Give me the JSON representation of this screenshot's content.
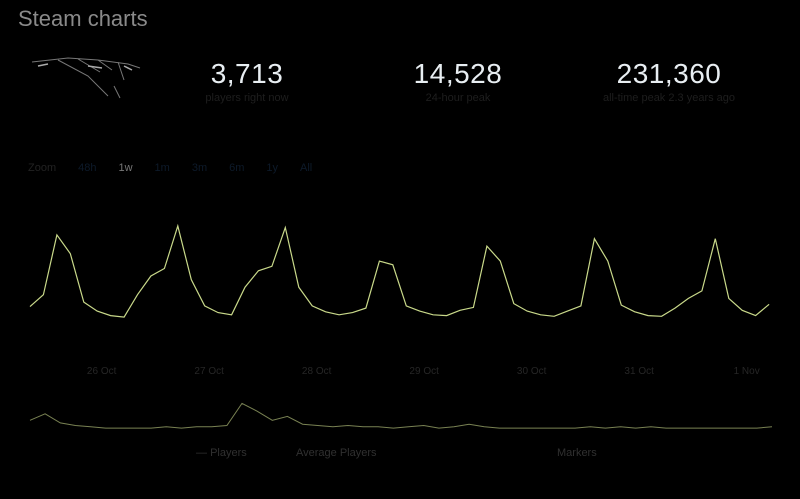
{
  "header": {
    "title": "Steam charts"
  },
  "stats": [
    {
      "value": "3,713",
      "label": "players right now"
    },
    {
      "value": "14,528",
      "label": "24-hour peak"
    },
    {
      "value": "231,360",
      "label": "all-time peak 2.3 years ago"
    }
  ],
  "zoom": {
    "label": "Zoom",
    "options": [
      "48h",
      "1w",
      "1m",
      "3m",
      "6m",
      "1y",
      "All"
    ],
    "selected": "1w"
  },
  "colors": {
    "line": "#c9d98a",
    "background": "#000000",
    "stat_value": "#e8eef2"
  },
  "chart_data": {
    "type": "line",
    "title": "",
    "xlabel": "",
    "ylabel": "",
    "x_tick_labels": [
      "26 Oct",
      "27 Oct",
      "28 Oct",
      "29 Oct",
      "30 Oct",
      "31 Oct",
      "1 Nov"
    ],
    "grid": false,
    "series": [
      {
        "name": "Players",
        "values": [
          3400,
          5000,
          13000,
          10500,
          4000,
          2800,
          2200,
          2000,
          5000,
          7500,
          8500,
          14200,
          7000,
          3500,
          2600,
          2300,
          6000,
          8200,
          8800,
          14000,
          6000,
          3500,
          2700,
          2300,
          2600,
          3200,
          9500,
          9000,
          3500,
          2800,
          2300,
          2200,
          2900,
          3300,
          11500,
          9500,
          3800,
          2800,
          2300,
          2100,
          2800,
          3500,
          12500,
          9500,
          3600,
          2700,
          2200,
          2100,
          3200,
          4500,
          5500,
          12500,
          4500,
          2900,
          2200,
          3713
        ]
      }
    ],
    "navigator_values": [
      9,
      14,
      7,
      5,
      4,
      3,
      3,
      3,
      3,
      4,
      3,
      4,
      4,
      5,
      22,
      16,
      9,
      12,
      6,
      5,
      4,
      5,
      4,
      4,
      3,
      4,
      5,
      3,
      4,
      6,
      4,
      3,
      3,
      3,
      3,
      3,
      3,
      4,
      3,
      4,
      3,
      4,
      3,
      3,
      3,
      3,
      3,
      3,
      3,
      4
    ],
    "legend": [
      "Players",
      "Average Players",
      "Markers"
    ]
  }
}
